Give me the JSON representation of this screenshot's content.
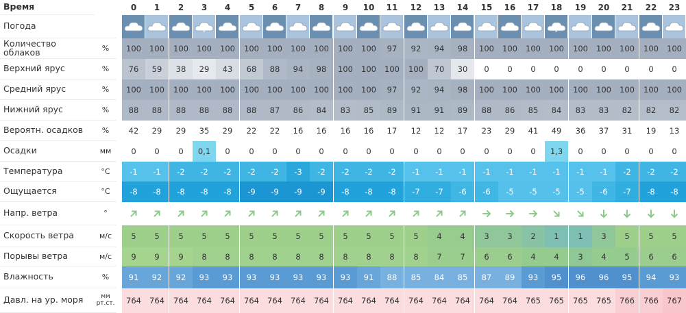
{
  "hours": [
    "0",
    "1",
    "2",
    "3",
    "4",
    "5",
    "6",
    "7",
    "8",
    "9",
    "10",
    "11",
    "12",
    "13",
    "14",
    "15",
    "16",
    "17",
    "18",
    "19",
    "20",
    "21",
    "22",
    "23"
  ],
  "header_label": "Время",
  "weather_row": {
    "label": "Погода",
    "icons": [
      "cloud-icon",
      "cloud-icon",
      "cloud-icon",
      "cloud-snow-icon",
      "cloud-icon",
      "cloud-icon",
      "cloud-icon",
      "cloud-icon",
      "cloud-icon",
      "cloud-icon",
      "cloud-icon",
      "cloud-icon",
      "cloud-icon",
      "cloud-icon",
      "cloud-icon",
      "cloud-icon",
      "cloud-icon",
      "cloud-icon",
      "cloud-snow-icon",
      "cloud-icon",
      "cloud-icon",
      "cloud-icon",
      "cloud-icon",
      "cloud-icon"
    ]
  },
  "rows": [
    {
      "key": "cloud",
      "label": "Количество облаков",
      "unit": "%",
      "values": [
        "100",
        "100",
        "100",
        "100",
        "100",
        "100",
        "100",
        "100",
        "100",
        "100",
        "100",
        "97",
        "92",
        "94",
        "98",
        "100",
        "100",
        "100",
        "100",
        "100",
        "100",
        "100",
        "100",
        "100"
      ]
    },
    {
      "key": "high",
      "label": "Верхний ярус",
      "unit": "%",
      "values": [
        "76",
        "59",
        "38",
        "29",
        "43",
        "68",
        "88",
        "94",
        "98",
        "100",
        "100",
        "100",
        "100",
        "70",
        "30",
        "0",
        "0",
        "0",
        "0",
        "0",
        "0",
        "0",
        "0",
        "0"
      ]
    },
    {
      "key": "mid",
      "label": "Средний ярус",
      "unit": "%",
      "values": [
        "100",
        "100",
        "100",
        "100",
        "100",
        "100",
        "100",
        "100",
        "100",
        "100",
        "100",
        "97",
        "92",
        "94",
        "98",
        "100",
        "100",
        "100",
        "100",
        "100",
        "100",
        "100",
        "100",
        "100"
      ]
    },
    {
      "key": "low",
      "label": "Нижний ярус",
      "unit": "%",
      "values": [
        "88",
        "88",
        "88",
        "88",
        "88",
        "88",
        "87",
        "86",
        "84",
        "83",
        "85",
        "89",
        "91",
        "91",
        "89",
        "88",
        "86",
        "85",
        "84",
        "83",
        "83",
        "82",
        "82",
        "82"
      ]
    },
    {
      "key": "prob",
      "label": "Вероятн. осадков",
      "unit": "%",
      "values": [
        "42",
        "29",
        "29",
        "35",
        "29",
        "22",
        "22",
        "16",
        "16",
        "16",
        "16",
        "17",
        "12",
        "12",
        "17",
        "23",
        "29",
        "41",
        "49",
        "36",
        "37",
        "31",
        "19",
        "13"
      ]
    },
    {
      "key": "precip",
      "label": "Осадки",
      "unit": "мм",
      "values": [
        "0",
        "0",
        "0",
        "0,1",
        "0",
        "0",
        "0",
        "0",
        "0",
        "0",
        "0",
        "0",
        "0",
        "0",
        "0",
        "0",
        "0",
        "0",
        "1,3",
        "0",
        "0",
        "0",
        "0",
        "0"
      ]
    },
    {
      "key": "temp",
      "label": "Температура",
      "unit": "°C",
      "values": [
        "-1",
        "-1",
        "-2",
        "-2",
        "-2",
        "-2",
        "-2",
        "-3",
        "-2",
        "-2",
        "-2",
        "-2",
        "-1",
        "-1",
        "-1",
        "-1",
        "-1",
        "-1",
        "-1",
        "-1",
        "-1",
        "-2",
        "-2",
        "-2"
      ]
    },
    {
      "key": "feels",
      "label": "Ощущается",
      "unit": "°C",
      "values": [
        "-8",
        "-8",
        "-8",
        "-8",
        "-8",
        "-9",
        "-9",
        "-9",
        "-9",
        "-8",
        "-8",
        "-8",
        "-7",
        "-7",
        "-6",
        "-6",
        "-5",
        "-5",
        "-5",
        "-5",
        "-6",
        "-7",
        "-8",
        "-8"
      ]
    },
    {
      "key": "dir",
      "label": "Напр. ветра",
      "unit": "°",
      "values": [
        "ne",
        "ne",
        "ne",
        "ne",
        "ne",
        "ne",
        "ne",
        "ne",
        "ne",
        "ne",
        "ne",
        "ne",
        "ne",
        "ne",
        "ne",
        "e",
        "e",
        "e",
        "se",
        "se",
        "s",
        "s",
        "s",
        "s"
      ]
    },
    {
      "key": "wind",
      "label": "Скорость ветра",
      "unit": "м/с",
      "values": [
        "5",
        "5",
        "5",
        "5",
        "5",
        "5",
        "5",
        "5",
        "5",
        "5",
        "5",
        "5",
        "5",
        "4",
        "4",
        "3",
        "3",
        "2",
        "1",
        "1",
        "3",
        "5",
        "5",
        "5"
      ]
    },
    {
      "key": "gust",
      "label": "Порывы ветра",
      "unit": "м/с",
      "values": [
        "9",
        "9",
        "9",
        "8",
        "8",
        "8",
        "8",
        "8",
        "8",
        "8",
        "8",
        "8",
        "8",
        "7",
        "7",
        "6",
        "6",
        "4",
        "4",
        "3",
        "4",
        "5",
        "6",
        "6"
      ]
    },
    {
      "key": "hum",
      "label": "Влажность",
      "unit": "%",
      "values": [
        "91",
        "92",
        "92",
        "93",
        "93",
        "93",
        "93",
        "93",
        "93",
        "93",
        "91",
        "88",
        "85",
        "84",
        "85",
        "87",
        "89",
        "93",
        "95",
        "96",
        "96",
        "95",
        "94",
        "93"
      ]
    },
    {
      "key": "press",
      "label": "Давл. на ур. моря",
      "unit": "мм рт.ст.",
      "values": [
        "764",
        "764",
        "764",
        "764",
        "764",
        "764",
        "764",
        "764",
        "764",
        "764",
        "764",
        "764",
        "764",
        "764",
        "764",
        "764",
        "764",
        "765",
        "765",
        "765",
        "765",
        "766",
        "766",
        "767"
      ]
    }
  ],
  "colors": {
    "sky_dark": "#6a8fb0",
    "sky_light": "#a9c4dc",
    "cloud_full": "#a4b0bf",
    "temp_blue": "#34aee0",
    "feels_blue": "#1fa0d9",
    "wind_green": "#9ed08c",
    "hum_blue": "#5f9fd6",
    "press_pink": "#fbd9dc",
    "precip_cyan": "#7fd6ef",
    "arrow_green": "#8cc98a"
  }
}
